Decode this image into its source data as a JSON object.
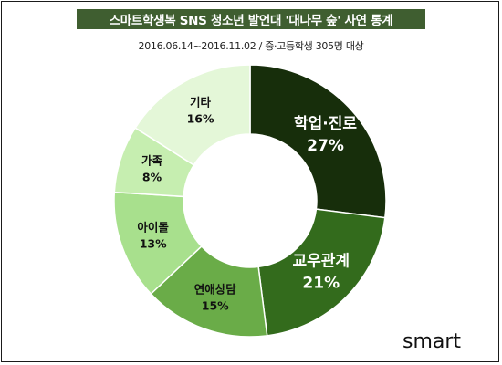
{
  "title": "스마트학생복 SNS 청소년 발언대 '대나무 숲' 사연 통계",
  "subtitle": "2016.06.14~2016.11.02 / 중·고등학생 305명 대상",
  "logo": {
    "text": "smart"
  },
  "chart_data": {
    "type": "pie",
    "style": "donut",
    "categories": [
      "학업·진로",
      "교우관계",
      "연애상담",
      "아이돌",
      "가족",
      "기타"
    ],
    "values": [
      27,
      21,
      15,
      13,
      8,
      16
    ],
    "value_labels": [
      "27%",
      "21%",
      "15%",
      "13%",
      "8%",
      "16%"
    ],
    "colors": [
      "#172e0b",
      "#336b1c",
      "#6aac48",
      "#a8e08d",
      "#c6eeb0",
      "#e4f7d8"
    ],
    "label_colors": [
      "#ffffff",
      "#ffffff",
      "#111111",
      "#111111",
      "#111111",
      "#111111"
    ],
    "start_angle": "12 o'clock",
    "direction": "clockwise",
    "legend": "none"
  }
}
